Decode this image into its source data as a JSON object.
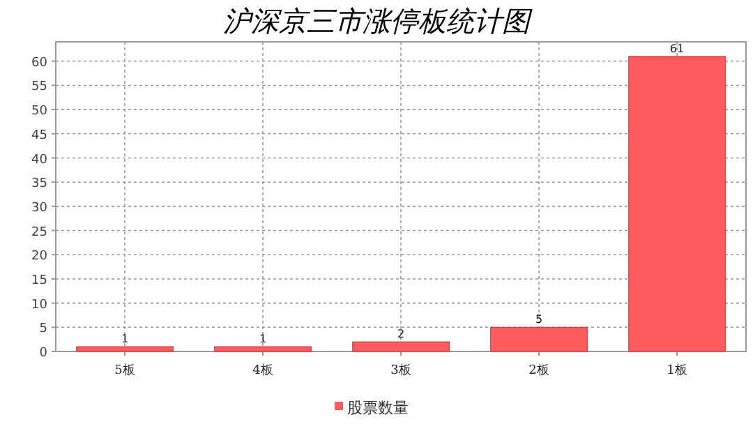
{
  "chart_data": {
    "type": "bar",
    "title": "沪深京三市涨停板统计图",
    "categories": [
      "5板",
      "4板",
      "3板",
      "2板",
      "1板"
    ],
    "series": [
      {
        "name": "股票数量",
        "color": "#ff5a60",
        "values": [
          1,
          1,
          2,
          5,
          61
        ]
      }
    ],
    "ylim": [
      0,
      64
    ],
    "yticks": [
      0,
      5,
      10,
      15,
      20,
      25,
      30,
      35,
      40,
      45,
      50,
      55,
      60
    ],
    "grid": true,
    "data_labels": true,
    "legend": "bottom"
  }
}
